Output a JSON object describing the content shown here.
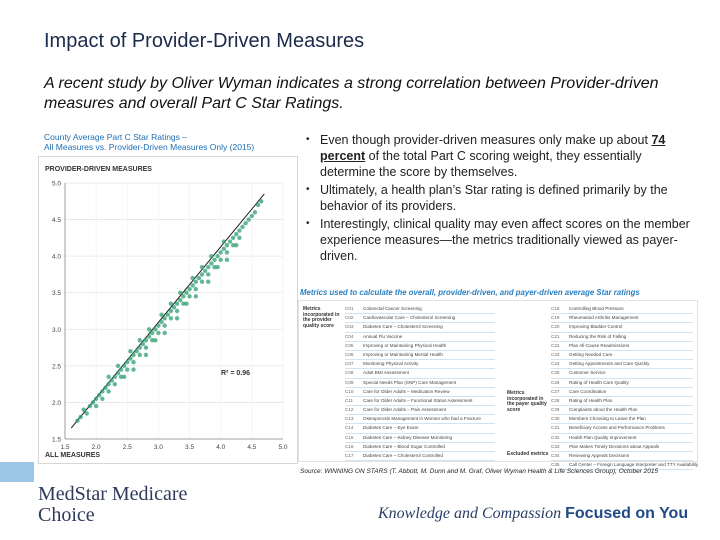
{
  "slide": {
    "title": "Impact of Provider-Driven Measures",
    "subtitle": "A recent study by Oliver Wyman indicates a strong correlation between Provider-driven measures and overall Part C Star Ratings."
  },
  "chart_caption": {
    "line1": "County Average Part C Star Ratings –",
    "line2": "All Measures vs. Provider-Driven Measures Only (2015)"
  },
  "bullets": [
    {
      "before": "Even though provider-driven measures only make up about ",
      "emphasis": "74 percent",
      "after": " of the total Part C scoring weight, they essentially determine the score by themselves."
    },
    {
      "text": "Ultimately, a health plan’s Star rating is defined primarily by the behavior of its providers."
    },
    {
      "text": "Interestingly, clinical quality may even affect scores on the member experience measures—the metrics traditionally viewed as payer-driven."
    }
  ],
  "metrics": {
    "title": "Metrics used to calculate the overall, provider-driven, and payer-driven average Star ratings",
    "left_label": "Metrics incorporated in the provider quality score",
    "right_label": "Metrics incorporated in the payer quality score",
    "excluded_label": "Excluded metrics",
    "left_items": [
      {
        "code": "C01",
        "label": "Colorectal Cancer Screening"
      },
      {
        "code": "C02",
        "label": "Cardiovascular Care – Cholesterol Screening"
      },
      {
        "code": "C03",
        "label": "Diabetes Care – Cholesterol Screening"
      },
      {
        "code": "C04",
        "label": "Annual Flu Vaccine"
      },
      {
        "code": "C05",
        "label": "Improving or Maintaining Physical Health"
      },
      {
        "code": "C06",
        "label": "Improving or Maintaining Mental Health"
      },
      {
        "code": "C07",
        "label": "Monitoring Physical Activity"
      },
      {
        "code": "C08",
        "label": "Adult BMI Assessment"
      },
      {
        "code": "C09",
        "label": "Special Needs Plan (SNP) Care Management"
      },
      {
        "code": "C10",
        "label": "Care for Older Adults – Medication Review"
      },
      {
        "code": "C11",
        "label": "Care for Older Adults – Functional Status Assessment"
      },
      {
        "code": "C12",
        "label": "Care for Older Adults – Pain Assessment"
      },
      {
        "code": "C13",
        "label": "Osteoporosis Management in Women who had a Fracture"
      },
      {
        "code": "C14",
        "label": "Diabetes Care – Eye Exam"
      },
      {
        "code": "C15",
        "label": "Diabetes Care – Kidney Disease Monitoring"
      },
      {
        "code": "C16",
        "label": "Diabetes Care – Blood Sugar Controlled"
      },
      {
        "code": "C17",
        "label": "Diabetes Care – Cholesterol Controlled"
      }
    ],
    "right_items": [
      {
        "code": "C18",
        "label": "Controlling Blood Pressure"
      },
      {
        "code": "C19",
        "label": "Rheumatoid Arthritis Management"
      },
      {
        "code": "C20",
        "label": "Improving Bladder Control"
      },
      {
        "code": "C21",
        "label": "Reducing the Risk of Falling"
      },
      {
        "code": "C22",
        "label": "Plan All-Cause Readmissions"
      },
      {
        "code": "C23",
        "label": "Getting Needed Care"
      },
      {
        "code": "C24",
        "label": "Getting Appointments and Care Quickly"
      },
      {
        "code": "C25",
        "label": "Customer Service"
      },
      {
        "code": "C26",
        "label": "Rating of Health Care Quality"
      },
      {
        "code": "C27",
        "label": "Care Coordination"
      },
      {
        "code": "C28",
        "label": "Rating of Health Plan"
      },
      {
        "code": "C29",
        "label": "Complaints about the Health Plan"
      },
      {
        "code": "C30",
        "label": "Members Choosing to Leave the Plan"
      },
      {
        "code": "C31",
        "label": "Beneficiary Access and Performance Problems"
      },
      {
        "code": "C32",
        "label": "Health Plan Quality Improvement"
      },
      {
        "code": "C33",
        "label": "Plan Makes Timely Decisions about Appeals"
      },
      {
        "code": "C34",
        "label": "Reviewing Appeals Decisions"
      },
      {
        "code": "C35",
        "label": "Call Center – Foreign Language Interpreter and TTY Availability"
      }
    ]
  },
  "source": "Source: WINNING ON STARS (T. Abbott, M. Dunn and M. Graf, Oliver Wyman Health & Life Sciences Group), October 2015",
  "logo": {
    "line1": "MedStar Medicare",
    "line2": "Choice"
  },
  "tagline": {
    "part1": "Knowledge and Compassion ",
    "part2": "Focused on You"
  },
  "colors": {
    "accent": "#2a7fc1",
    "title": "#1b2a4a",
    "points": "#2f9e72",
    "logo_bar": "#9cc7e6"
  },
  "chart_data": {
    "type": "scatter",
    "title": "PROVIDER-DRIVEN MEASURES",
    "xlabel": "ALL MEASURES",
    "ylabel": "",
    "xlim": [
      1.5,
      5.0
    ],
    "ylim": [
      1.5,
      5.0
    ],
    "xticks": [
      "1.5",
      "2.0",
      "2.5",
      "3.0",
      "3.5",
      "4.0",
      "4.5",
      "5.0"
    ],
    "yticks": [
      "1.5",
      "2.0",
      "2.5",
      "3.0",
      "3.5",
      "4.0",
      "4.5",
      "5.0"
    ],
    "annotation": "R² = 0.96",
    "trendline": [
      [
        1.6,
        1.65
      ],
      [
        4.7,
        4.85
      ]
    ],
    "points": [
      [
        1.7,
        1.75
      ],
      [
        1.75,
        1.8
      ],
      [
        1.8,
        1.9
      ],
      [
        1.85,
        1.85
      ],
      [
        1.9,
        1.95
      ],
      [
        1.95,
        2.0
      ],
      [
        2.0,
        2.05
      ],
      [
        2.0,
        1.95
      ],
      [
        2.05,
        2.1
      ],
      [
        2.1,
        2.15
      ],
      [
        2.1,
        2.05
      ],
      [
        2.15,
        2.2
      ],
      [
        2.2,
        2.25
      ],
      [
        2.2,
        2.15
      ],
      [
        2.25,
        2.3
      ],
      [
        2.3,
        2.35
      ],
      [
        2.3,
        2.25
      ],
      [
        2.35,
        2.4
      ],
      [
        2.4,
        2.45
      ],
      [
        2.4,
        2.35
      ],
      [
        2.45,
        2.5
      ],
      [
        2.5,
        2.55
      ],
      [
        2.5,
        2.45
      ],
      [
        2.55,
        2.6
      ],
      [
        2.6,
        2.65
      ],
      [
        2.6,
        2.55
      ],
      [
        2.65,
        2.7
      ],
      [
        2.7,
        2.75
      ],
      [
        2.7,
        2.65
      ],
      [
        2.75,
        2.8
      ],
      [
        2.8,
        2.85
      ],
      [
        2.8,
        2.75
      ],
      [
        2.85,
        2.9
      ],
      [
        2.9,
        2.95
      ],
      [
        2.9,
        2.85
      ],
      [
        2.95,
        3.0
      ],
      [
        3.0,
        3.05
      ],
      [
        3.0,
        2.95
      ],
      [
        3.05,
        3.1
      ],
      [
        3.1,
        3.15
      ],
      [
        3.1,
        3.05
      ],
      [
        3.15,
        3.2
      ],
      [
        3.2,
        3.25
      ],
      [
        3.2,
        3.15
      ],
      [
        3.25,
        3.3
      ],
      [
        3.3,
        3.35
      ],
      [
        3.3,
        3.25
      ],
      [
        3.35,
        3.4
      ],
      [
        3.4,
        3.45
      ],
      [
        3.4,
        3.35
      ],
      [
        3.45,
        3.5
      ],
      [
        3.5,
        3.55
      ],
      [
        3.5,
        3.45
      ],
      [
        3.55,
        3.6
      ],
      [
        3.6,
        3.65
      ],
      [
        3.6,
        3.55
      ],
      [
        3.65,
        3.7
      ],
      [
        3.7,
        3.75
      ],
      [
        3.7,
        3.65
      ],
      [
        3.75,
        3.8
      ],
      [
        3.8,
        3.85
      ],
      [
        3.8,
        3.75
      ],
      [
        3.85,
        3.9
      ],
      [
        3.9,
        3.95
      ],
      [
        3.9,
        3.85
      ],
      [
        3.95,
        4.0
      ],
      [
        4.0,
        4.05
      ],
      [
        4.0,
        3.95
      ],
      [
        4.05,
        4.1
      ],
      [
        4.1,
        4.15
      ],
      [
        4.1,
        4.05
      ],
      [
        4.15,
        4.2
      ],
      [
        4.2,
        4.25
      ],
      [
        4.2,
        4.15
      ],
      [
        4.25,
        4.3
      ],
      [
        4.3,
        4.35
      ],
      [
        4.3,
        4.25
      ],
      [
        4.35,
        4.4
      ],
      [
        4.4,
        4.45
      ],
      [
        4.45,
        4.5
      ],
      [
        4.5,
        4.55
      ],
      [
        4.55,
        4.6
      ],
      [
        4.6,
        4.7
      ],
      [
        4.65,
        4.75
      ],
      [
        2.2,
        2.35
      ],
      [
        2.45,
        2.35
      ],
      [
        2.7,
        2.85
      ],
      [
        2.95,
        2.85
      ],
      [
        3.2,
        3.35
      ],
      [
        3.45,
        3.35
      ],
      [
        3.7,
        3.85
      ],
      [
        3.95,
        3.85
      ],
      [
        2.35,
        2.5
      ],
      [
        2.6,
        2.45
      ],
      [
        2.85,
        3.0
      ],
      [
        3.1,
        2.95
      ],
      [
        3.35,
        3.5
      ],
      [
        3.6,
        3.45
      ],
      [
        3.85,
        4.0
      ],
      [
        4.1,
        3.95
      ],
      [
        2.55,
        2.7
      ],
      [
        2.8,
        2.65
      ],
      [
        3.05,
        3.2
      ],
      [
        3.3,
        3.15
      ],
      [
        3.55,
        3.7
      ],
      [
        3.8,
        3.65
      ],
      [
        4.05,
        4.2
      ],
      [
        4.25,
        4.15
      ]
    ]
  }
}
